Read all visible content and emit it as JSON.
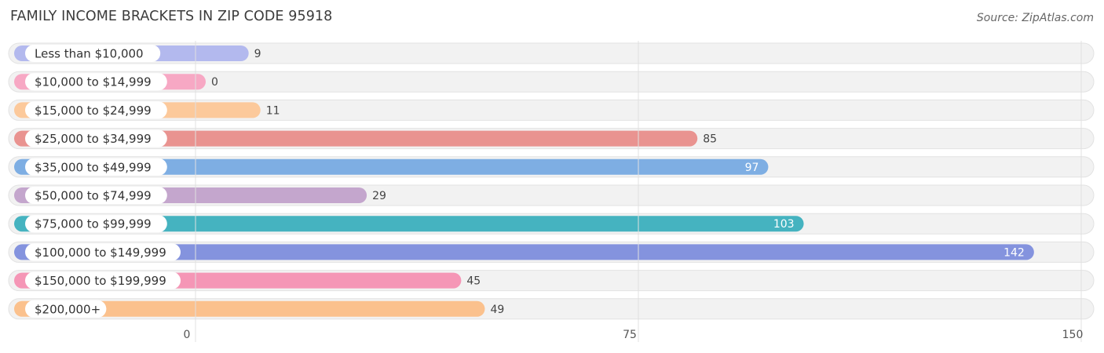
{
  "title": "FAMILY INCOME BRACKETS IN ZIP CODE 95918",
  "source": "Source: ZipAtlas.com",
  "chart_data": {
    "type": "bar",
    "orientation": "horizontal",
    "title": "FAMILY INCOME BRACKETS IN ZIP CODE 95918",
    "xlim": [
      0,
      150
    ],
    "ticks": [
      0,
      75,
      150
    ],
    "tick_labels": [
      "0",
      "75",
      "150"
    ],
    "grid": true,
    "categories": [
      "Less than $10,000",
      "$10,000 to $14,999",
      "$15,000 to $24,999",
      "$25,000 to $34,999",
      "$35,000 to $49,999",
      "$50,000 to $74,999",
      "$75,000 to $99,999",
      "$100,000 to $149,999",
      "$150,000 to $199,999",
      "$200,000+"
    ],
    "values": [
      9,
      0,
      11,
      85,
      97,
      29,
      103,
      142,
      45,
      49
    ],
    "value_labels": [
      "9",
      "0",
      "11",
      "85",
      "97",
      "29",
      "103",
      "142",
      "45",
      "49"
    ],
    "colors": [
      "#b3b9ee",
      "#f7a8c4",
      "#fcc99b",
      "#e99390",
      "#7eaee3",
      "#c4a6cd",
      "#45b3c0",
      "#8493de",
      "#f596b6",
      "#fbc18d"
    ]
  }
}
